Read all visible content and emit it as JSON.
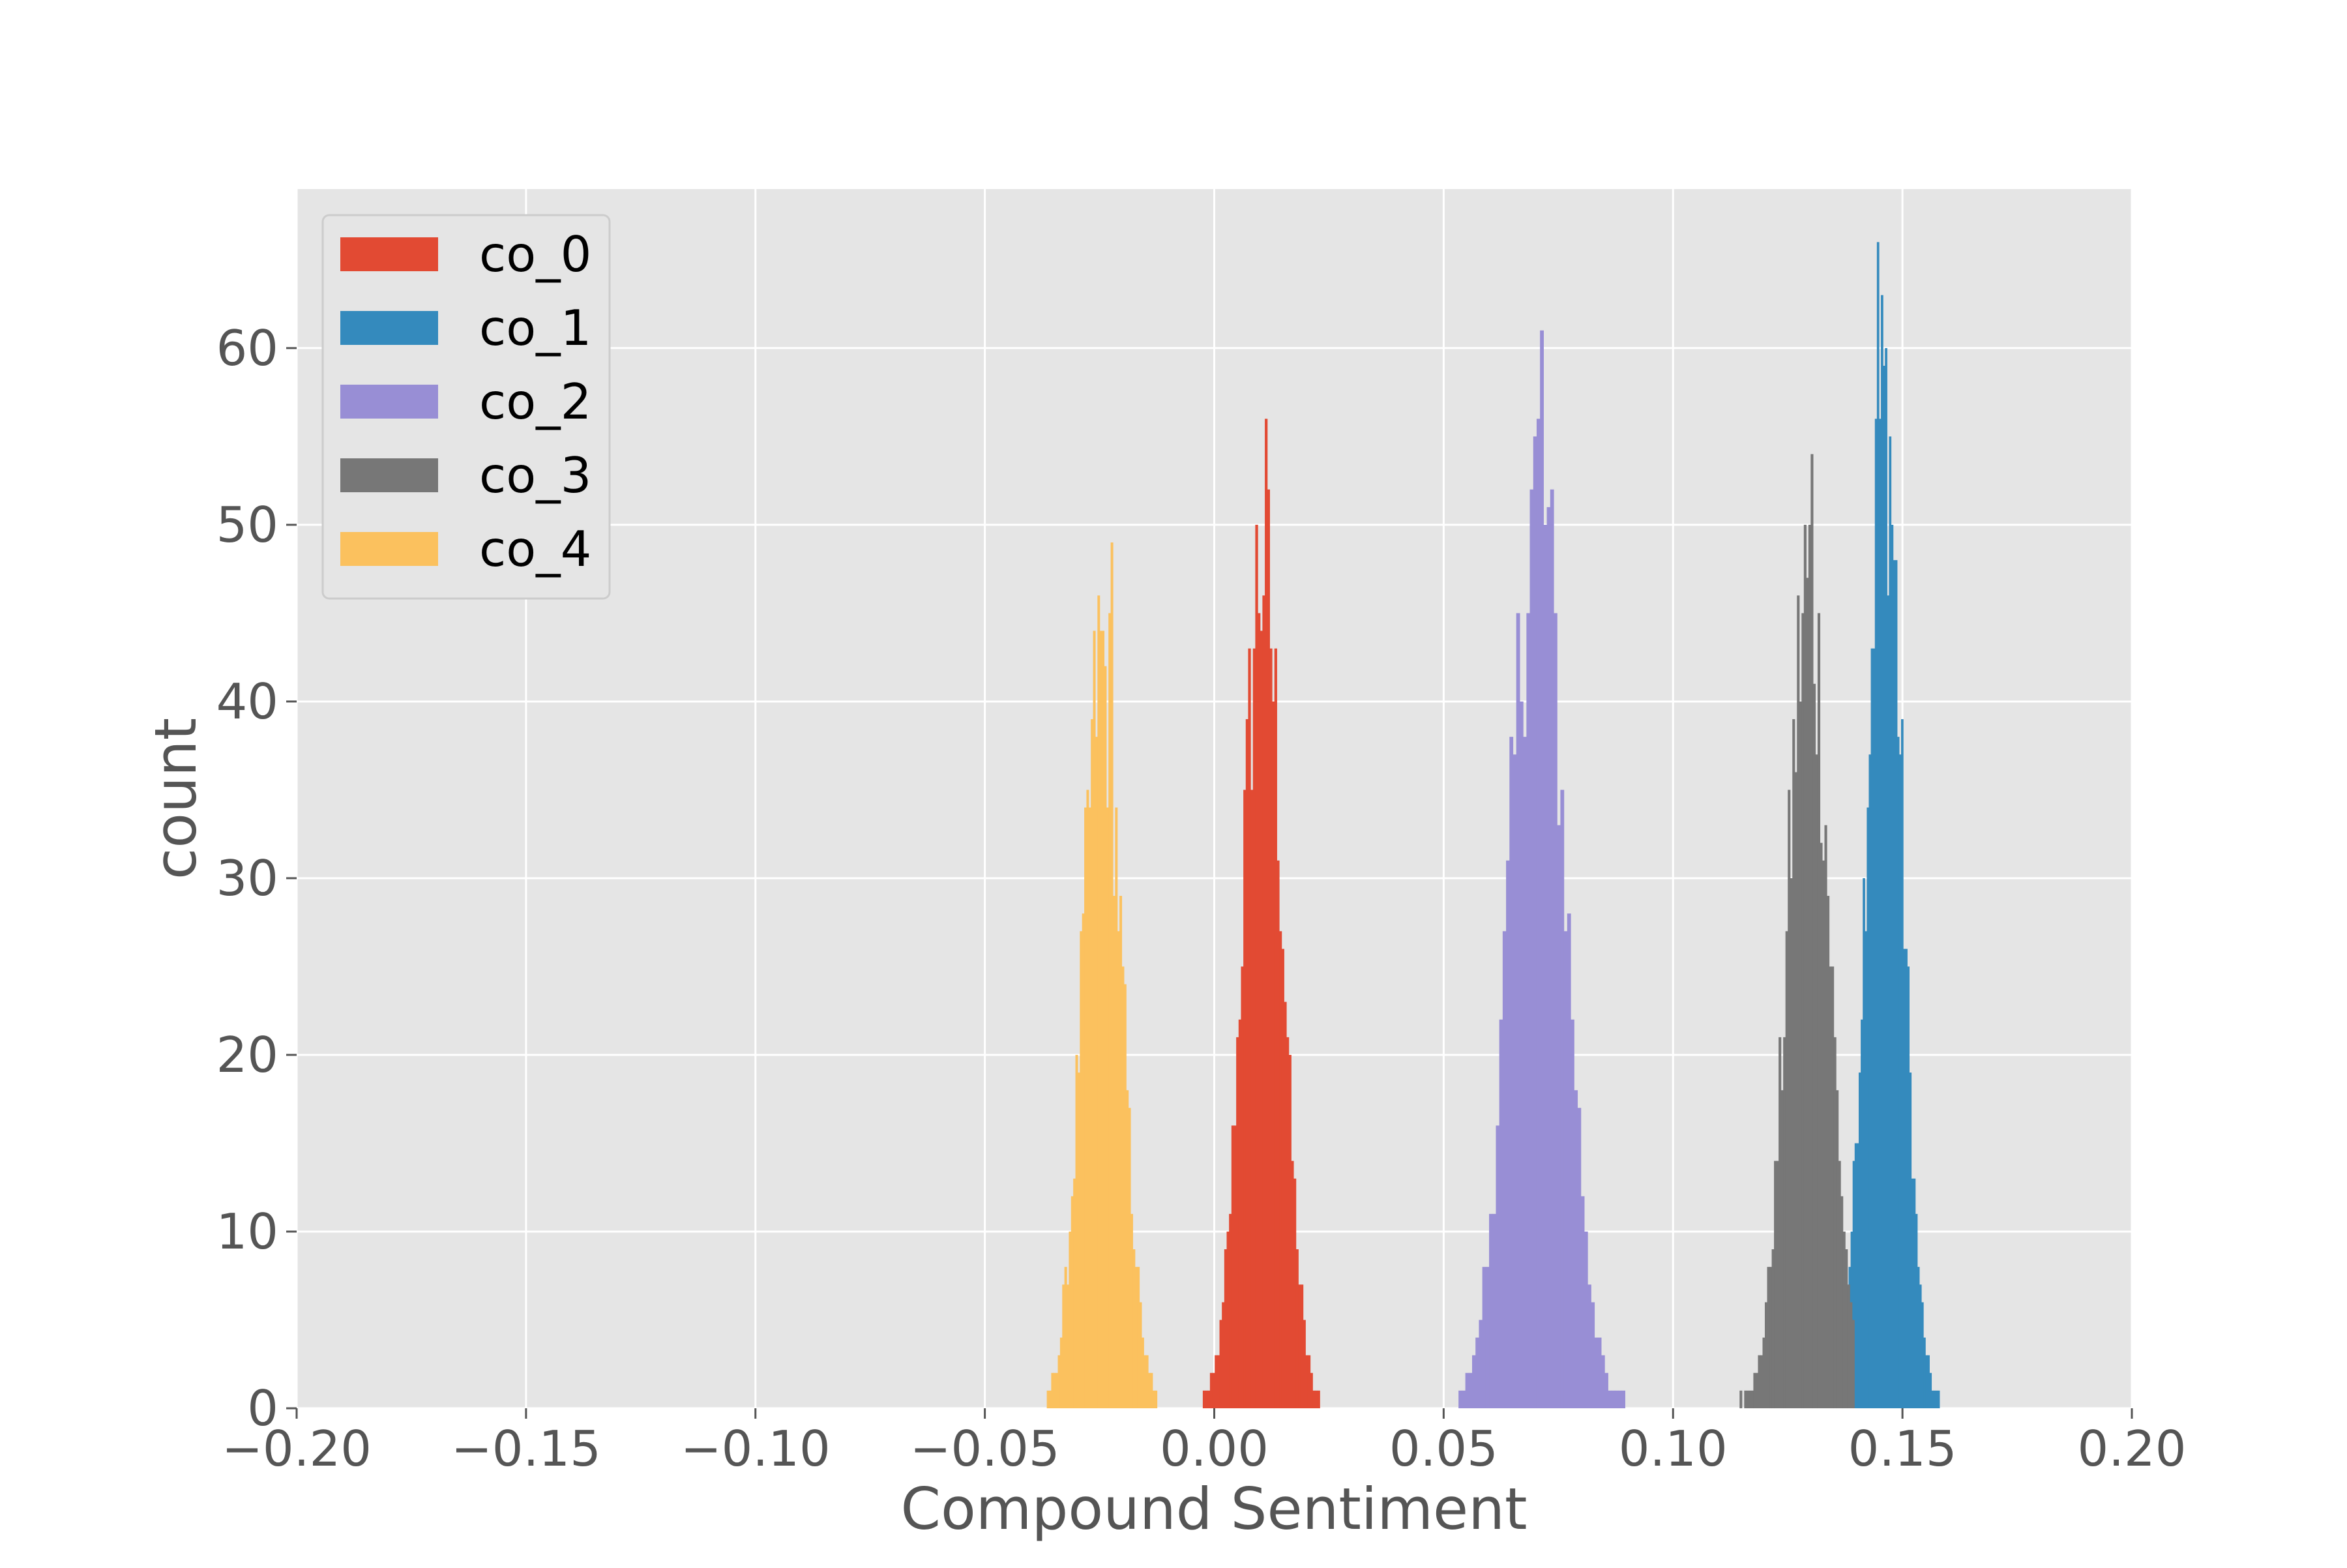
{
  "chart_data": {
    "type": "histogram",
    "title": "",
    "xlabel": "Compound Sentiment",
    "ylabel": "count",
    "xlim": [
      -0.2,
      0.2
    ],
    "ylim": [
      0,
      69
    ],
    "xticks": [
      "−0.20",
      "−0.15",
      "−0.10",
      "−0.05",
      "0.00",
      "0.05",
      "0.10",
      "0.15",
      "0.20"
    ],
    "xtick_values": [
      -0.2,
      -0.15,
      -0.1,
      -0.05,
      0.0,
      0.05,
      0.1,
      0.15,
      0.2
    ],
    "yticks": [
      "0",
      "10",
      "20",
      "30",
      "40",
      "50",
      "60"
    ],
    "ytick_values": [
      0,
      10,
      20,
      30,
      40,
      50,
      60
    ],
    "grid": true,
    "legend_position": "upper-left",
    "bins_per_series": 50,
    "series": [
      {
        "name": "co_0",
        "color": "#E24A33",
        "range": [
          -0.0025,
          0.0235
        ],
        "mean": 0.0105,
        "sd": 0.0042,
        "peak": 56,
        "peak_x": 0.0115
      },
      {
        "name": "co_1",
        "color": "#348ABD",
        "range": [
          0.1365,
          0.1585
        ],
        "mean": 0.146,
        "sd": 0.0038,
        "peak": 66,
        "peak_x": 0.1445
      },
      {
        "name": "co_2",
        "color": "#988ED5",
        "range": [
          0.0525,
          0.0895
        ],
        "mean": 0.0705,
        "sd": 0.0058,
        "peak": 61,
        "peak_x": 0.0715
      },
      {
        "name": "co_3",
        "color": "#777777",
        "range": [
          0.1145,
          0.1395
        ],
        "mean": 0.1295,
        "sd": 0.0045,
        "peak": 54,
        "peak_x": 0.1305
      },
      {
        "name": "co_4",
        "color": "#FBC15E",
        "range": [
          -0.0365,
          -0.0125
        ],
        "mean": -0.0245,
        "sd": 0.0042,
        "peak": 49,
        "peak_x": -0.0225
      }
    ]
  }
}
